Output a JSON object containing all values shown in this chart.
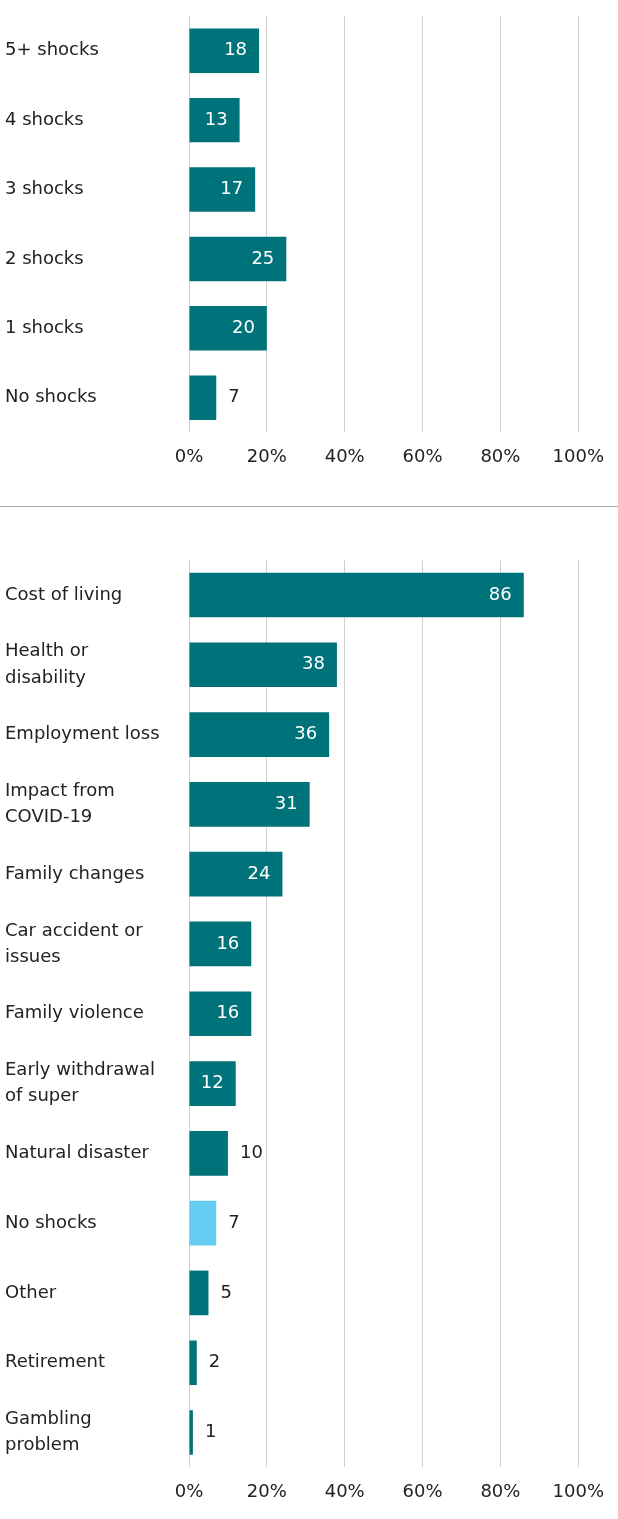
{
  "chart_data": [
    {
      "type": "bar",
      "orientation": "horizontal",
      "categories": [
        "5+ shocks",
        "4 shocks",
        "3 shocks",
        "2 shocks",
        "1 shocks",
        "No shocks"
      ],
      "values": [
        18,
        13,
        17,
        25,
        20,
        7
      ],
      "color": "#00737a",
      "data_labels": true,
      "grid": "x",
      "xlim": [
        0,
        100
      ],
      "xticks": [
        {
          "value": 0,
          "label": "0%"
        },
        {
          "value": 20,
          "label": "20%"
        },
        {
          "value": 40,
          "label": "40%"
        },
        {
          "value": 60,
          "label": "60%"
        },
        {
          "value": 80,
          "label": "80%"
        },
        {
          "value": 100,
          "label": "100%"
        }
      ]
    },
    {
      "type": "bar",
      "orientation": "horizontal",
      "categories": [
        "Cost of living",
        "Health or disability",
        "Employment loss",
        "Impact from COVID-19",
        "Family changes",
        "Car accident or issues",
        "Family violence",
        "Early withdrawal of super",
        "Natural disaster",
        "No shocks",
        "Other",
        "Retirement",
        "Gambling problem"
      ],
      "values": [
        86,
        38,
        36,
        31,
        24,
        16,
        16,
        12,
        10,
        7,
        5,
        2,
        1
      ],
      "colors": [
        "#00737a",
        "#00737a",
        "#00737a",
        "#00737a",
        "#00737a",
        "#00737a",
        "#00737a",
        "#00737a",
        "#00737a",
        "#66cdf2",
        "#00737a",
        "#00737a",
        "#00737a"
      ],
      "data_labels": true,
      "grid": "x",
      "xlim": [
        0,
        100
      ],
      "xticks": [
        {
          "value": 0,
          "label": "0%"
        },
        {
          "value": 20,
          "label": "20%"
        },
        {
          "value": 40,
          "label": "40%"
        },
        {
          "value": 60,
          "label": "60%"
        },
        {
          "value": 80,
          "label": "80%"
        },
        {
          "value": 100,
          "label": "100%"
        }
      ]
    }
  ]
}
